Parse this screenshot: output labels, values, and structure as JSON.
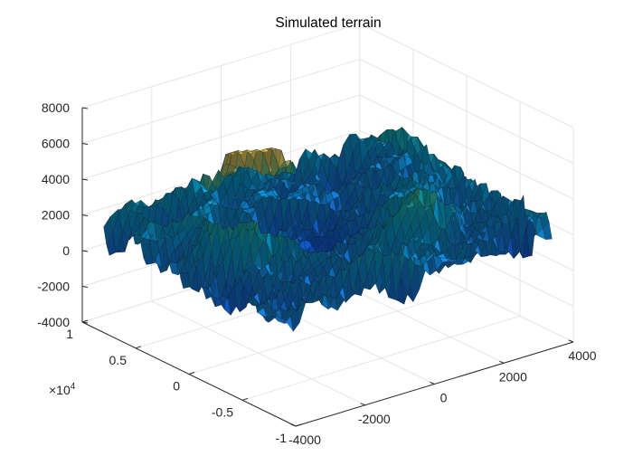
{
  "chart_data": {
    "type": "surface",
    "title": "Simulated terrain",
    "xlabel": "",
    "ylabel": "",
    "zlabel": "",
    "x_axis": {
      "range": [
        -4000,
        4000
      ],
      "ticks": [
        "-4000",
        "-2000",
        "0",
        "2000",
        "4000"
      ]
    },
    "y_axis": {
      "range": [
        -1,
        1
      ],
      "ticks": [
        "-1",
        "-0.5",
        "0",
        "0.5",
        "1"
      ],
      "multiplier": "×10",
      "multiplier_exp": "4"
    },
    "z_axis": {
      "range": [
        -4000,
        8000
      ],
      "ticks": [
        "-4000",
        "-2000",
        "0",
        "2000",
        "4000",
        "6000",
        "8000"
      ]
    },
    "grid": true,
    "colormap": "parula",
    "surface": {
      "x_range": [
        -4000,
        4000
      ],
      "y_range": [
        -8000,
        8000
      ],
      "peak_elevation": 6800,
      "min_elevation": -400
    }
  }
}
